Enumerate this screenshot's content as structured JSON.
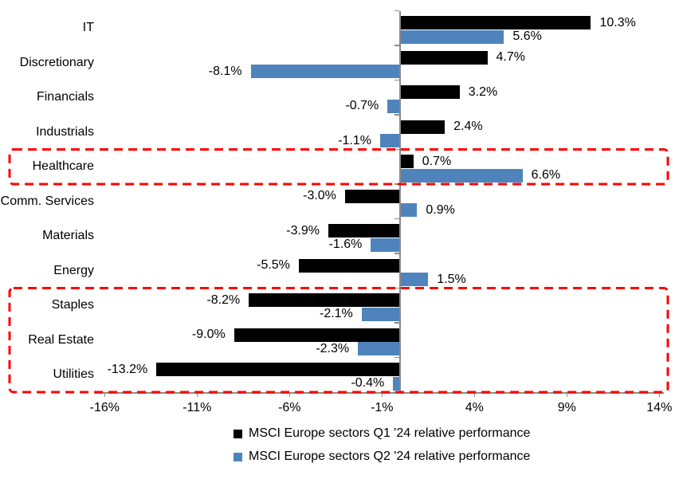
{
  "chart_data": {
    "type": "bar",
    "orientation": "horizontal",
    "title": "",
    "categories": [
      "IT",
      "Discretionary",
      "Financials",
      "Industrials",
      "Healthcare",
      "Comm. Services",
      "Materials",
      "Energy",
      "Staples",
      "Real Estate",
      "Utilities"
    ],
    "series": [
      {
        "name": "MSCI Europe sectors Q1 '24 relative performance",
        "color": "#000000",
        "values": [
          10.3,
          4.7,
          3.2,
          2.4,
          0.7,
          -3.0,
          -3.9,
          -5.5,
          -8.2,
          -9.0,
          -13.2
        ]
      },
      {
        "name": "MSCI Europe sectors Q2 '24 relative performance",
        "color": "#4E84BB",
        "values": [
          5.6,
          -8.1,
          -0.7,
          -1.1,
          6.6,
          0.9,
          -1.6,
          1.5,
          -2.1,
          -2.3,
          -0.4
        ]
      }
    ],
    "data_labels": {
      "q1": [
        "10.3%",
        "4.7%",
        "3.2%",
        "2.4%",
        "0.7%",
        "-3.0%",
        "-3.9%",
        "-5.5%",
        "-8.2%",
        "-9.0%",
        "-13.2%"
      ],
      "q2": [
        "5.6%",
        "-8.1%",
        "-0.7%",
        "-1.1%",
        "6.6%",
        "0.9%",
        "-1.6%",
        "1.5%",
        "-2.1%",
        "-2.3%",
        "-0.4%"
      ]
    },
    "x_ticks": [
      -16,
      -11,
      -6,
      -1,
      4,
      9,
      14
    ],
    "x_tick_labels": [
      "-16%",
      "-11%",
      "-6%",
      "-1%",
      "4%",
      "9%",
      "14%"
    ],
    "xlim": [
      -16.6,
      14.3
    ],
    "grid": false,
    "legend_position": "bottom",
    "axis_color": "#8a8a8a",
    "annotations": {
      "highlight_color": "#FF0000",
      "highlight_style": "dashed-rectangle",
      "highlighted_groups": [
        [
          "Healthcare"
        ],
        [
          "Staples",
          "Real Estate",
          "Utilities"
        ]
      ]
    }
  }
}
